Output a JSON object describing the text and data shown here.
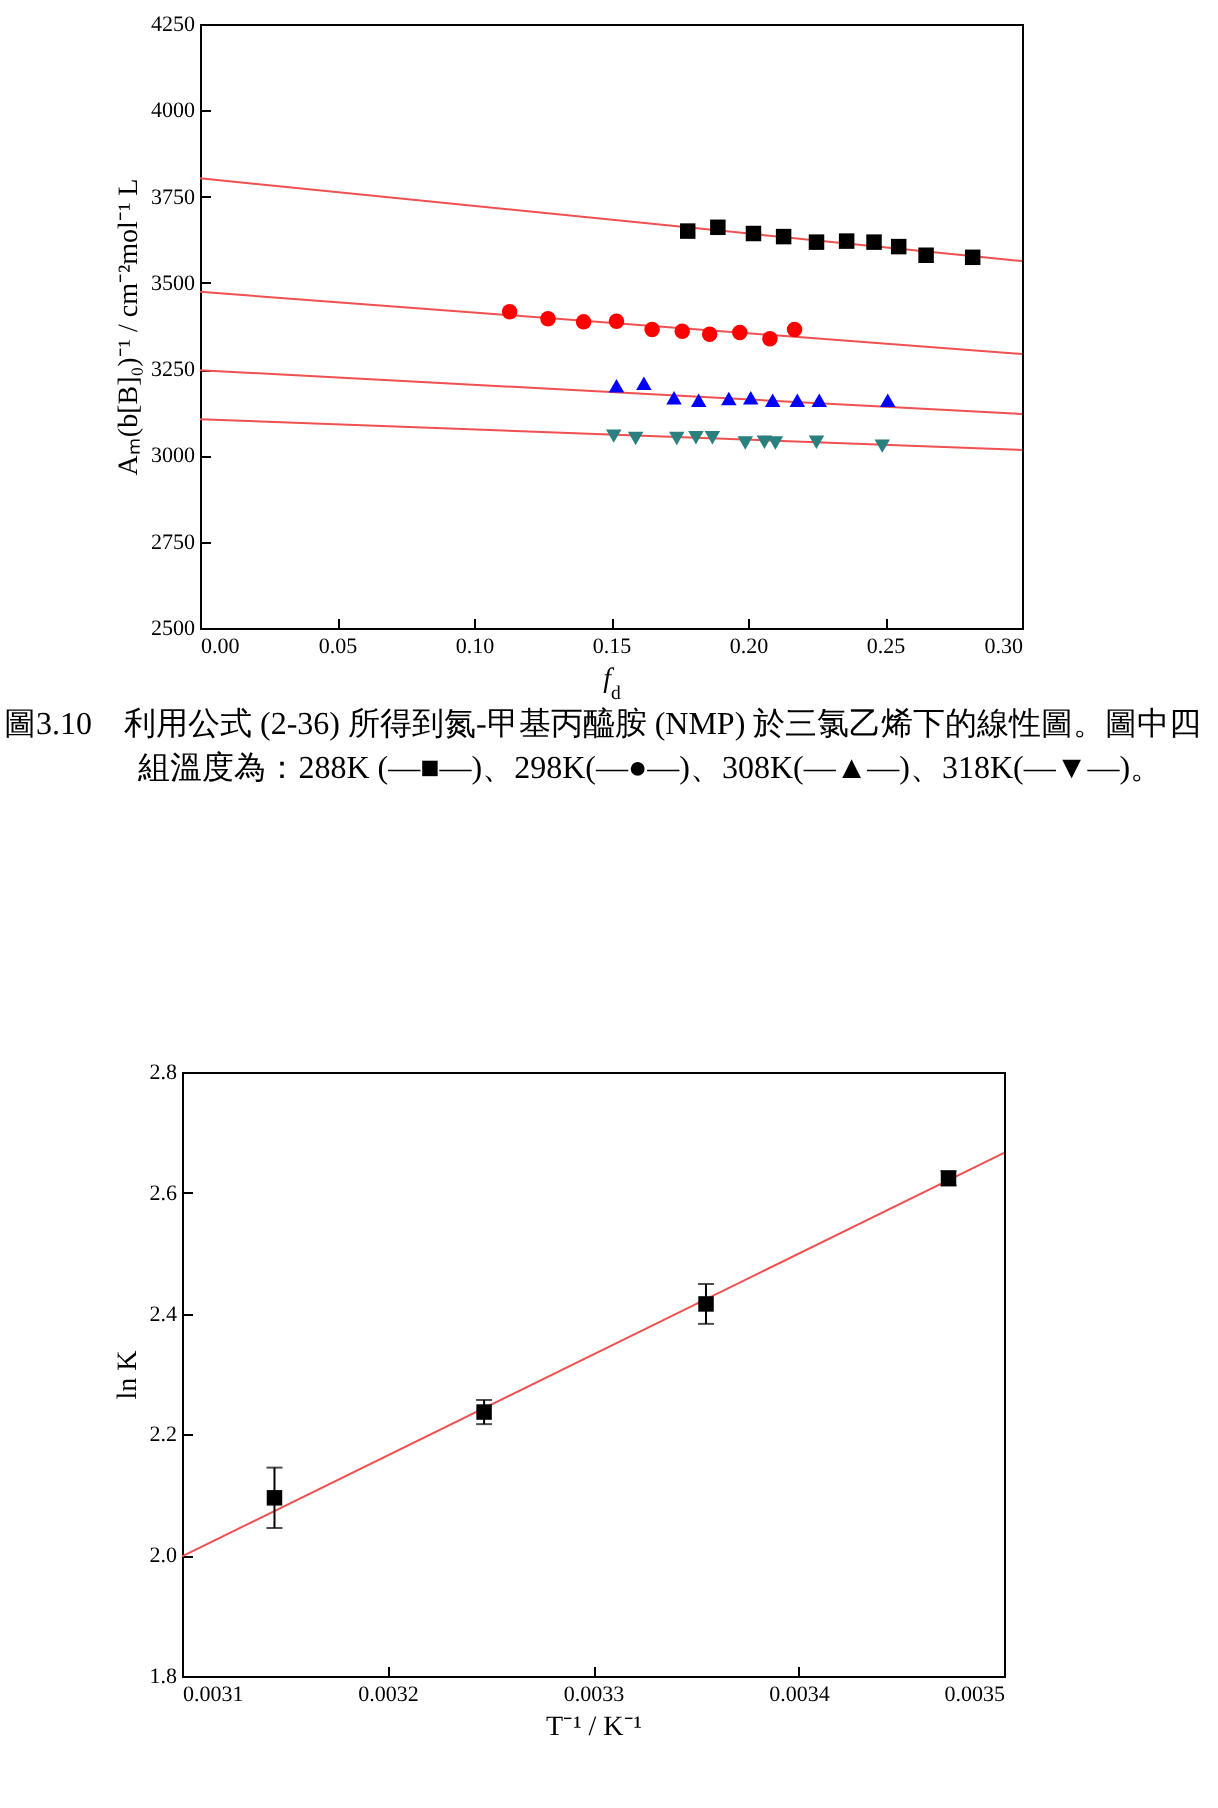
{
  "chart_data": [
    {
      "type": "scatter",
      "xlabel": "f$_{d}$",
      "ylabel": "Aₘ(b[B]₀)⁻¹ / cm⁻²mol⁻¹ L",
      "xlim": [
        0,
        0.3
      ],
      "ylim": [
        2500,
        4250
      ],
      "xticks": [
        {
          "value": 0,
          "label": "0.00"
        },
        0.05,
        {
          "value": 0.1,
          "label": "0.10"
        },
        0.15,
        {
          "value": 0.2,
          "label": "0.20"
        },
        0.25,
        {
          "value": 0.3,
          "label": "0.30"
        }
      ],
      "yticks": [
        2500,
        2750,
        3000,
        3250,
        3500,
        3750,
        4000,
        4250
      ],
      "series": [
        {
          "type": "line",
          "color": "#f05050",
          "x": [
            0,
            0.3
          ],
          "values": [
            3803,
            3563
          ]
        },
        {
          "type": "line",
          "color": "#f05050",
          "x": [
            0,
            0.3
          ],
          "values": [
            3474,
            3294
          ]
        },
        {
          "type": "line",
          "color": "#f05050",
          "x": [
            0,
            0.3
          ],
          "values": [
            3247,
            3120
          ]
        },
        {
          "type": "line",
          "color": "#f05050",
          "x": [
            0,
            0.3
          ],
          "values": [
            3105,
            3016
          ]
        },
        {
          "type": "scatter",
          "marker": "square",
          "color": "#000000",
          "x": [
            0.178,
            0.189,
            0.202,
            0.213,
            0.225,
            0.236,
            0.246,
            0.255,
            0.265,
            0.282
          ],
          "values": [
            3650,
            3661,
            3643,
            3634,
            3618,
            3621,
            3618,
            3605,
            3580,
            3574
          ]
        },
        {
          "type": "scatter",
          "marker": "circle",
          "color": "#ff0000",
          "x": [
            0.113,
            0.127,
            0.14,
            0.152,
            0.165,
            0.176,
            0.186,
            0.197,
            0.208,
            0.217
          ],
          "values": [
            3416,
            3396,
            3387,
            3389,
            3365,
            3360,
            3351,
            3356,
            3338,
            3365
          ]
        },
        {
          "type": "scatter",
          "marker": "triangle",
          "color": "#0000ff",
          "x": [
            0.152,
            0.162,
            0.173,
            0.182,
            0.193,
            0.201,
            0.209,
            0.218,
            0.226,
            0.251
          ],
          "values": [
            3202,
            3209,
            3167,
            3160,
            3165,
            3167,
            3160,
            3160,
            3160,
            3160
          ]
        },
        {
          "type": "scatter",
          "marker": "triangle-down",
          "color": "#2a7f7f",
          "x": [
            0.151,
            0.159,
            0.174,
            0.181,
            0.187,
            0.199,
            0.206,
            0.21,
            0.225,
            0.249
          ],
          "values": [
            3056,
            3049,
            3049,
            3051,
            3051,
            3036,
            3038,
            3036,
            3038,
            3027
          ]
        }
      ],
      "annotations": [
        "圖3.10　利用公式 (2-36) 所得到氮-甲基丙醯胺 (NMP) 於三氯乙烯下的線性圖。圖中四組溫度為：288K (—■—)、298K(—●—)、308K(—▲—)、318K(—▼—)。"
      ]
    },
    {
      "type": "scatter",
      "xlabel": "T⁻¹ / K⁻¹",
      "ylabel": "ln K",
      "xlim": [
        0.0031,
        0.0035
      ],
      "ylim": [
        1.8,
        2.8
      ],
      "xticks": [
        0.0031,
        0.0032,
        0.0033,
        0.0034,
        0.0035
      ],
      "yticks": [
        1.8,
        {
          "value": 2,
          "label": "2.0"
        },
        2.2,
        2.4,
        2.6,
        2.8
      ],
      "series": [
        {
          "type": "line",
          "color": "#f05050",
          "x": [
            0.0031,
            0.0035
          ],
          "values": [
            1.998,
            2.666
          ]
        },
        {
          "type": "scatter",
          "marker": "square",
          "color": "#000000",
          "x": [
            0.003145,
            0.003247,
            0.003355,
            0.003473
          ],
          "values": [
            2.095,
            2.237,
            2.416,
            2.624
          ],
          "errors": [
            0.05,
            0.02,
            0.033,
            0.012
          ]
        }
      ]
    }
  ]
}
